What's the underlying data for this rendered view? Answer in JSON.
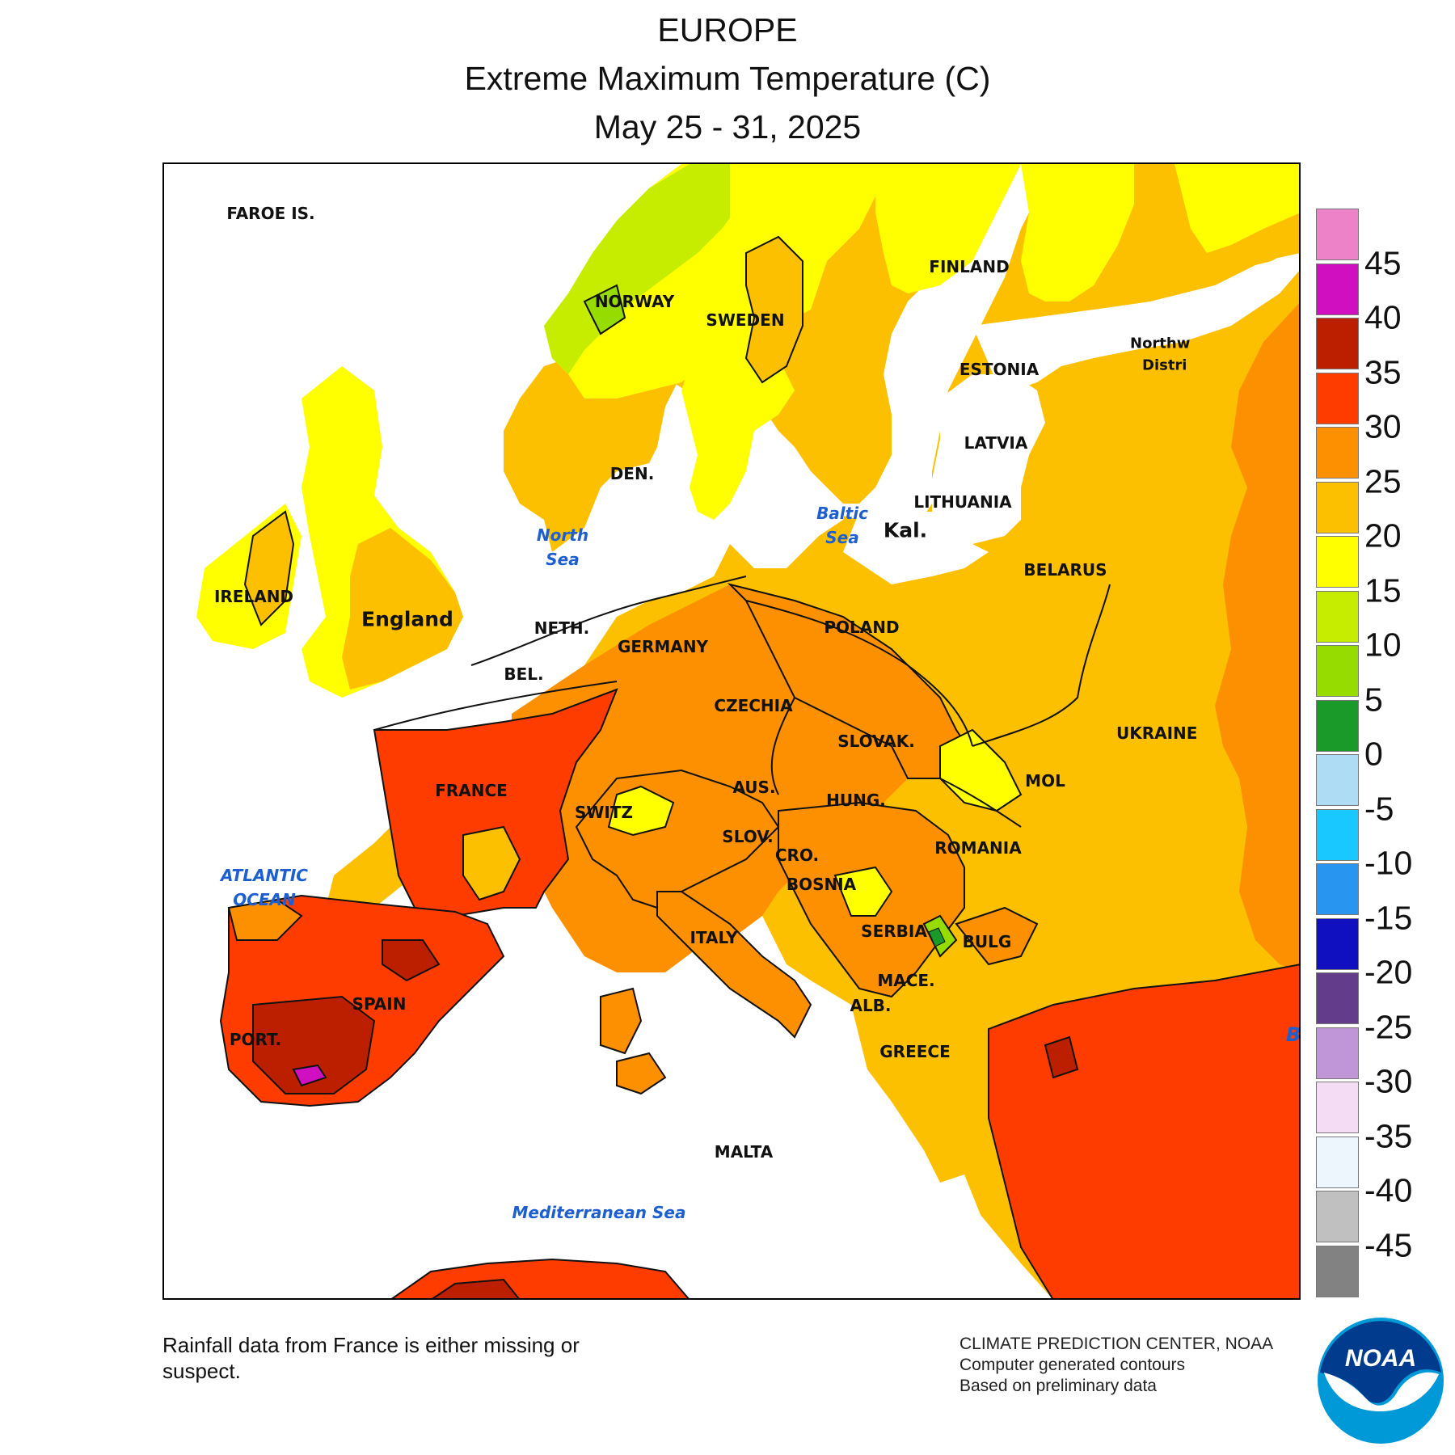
{
  "title": {
    "line1": "EUROPE",
    "line2": "Extreme Maximum Temperature (C)",
    "line3": "May 25 - 31, 2025"
  },
  "map": {
    "labels": {
      "faroe": "FAROE IS.",
      "norway": "NORWAY",
      "sweden": "SWEDEN",
      "finland": "FINLAND",
      "estonia": "ESTONIA",
      "latvia": "LATVIA",
      "lithuania": "LITHUANIA",
      "kal": "Kal.",
      "belarus": "BELARUS",
      "northwest_district_a": "Northw",
      "northwest_district_b": "Distri",
      "den": "DEN.",
      "ireland": "IRELAND",
      "england": "England",
      "neth": "NETH.",
      "bel": "BEL.",
      "germany": "GERMANY",
      "poland": "POLAND",
      "czechia": "CZECHIA",
      "slovak": "SLOVAK.",
      "ukraine": "UKRAINE",
      "mol": "MOL",
      "france": "FRANCE",
      "switz": "SWITZ",
      "aus": "AUS.",
      "hung": "HUNG.",
      "romania": "ROMANIA",
      "slov": "SLOV.",
      "cro": "CRO.",
      "bosnia": "BOSNIA",
      "serbia": "SERBIA",
      "bulg": "BULG",
      "mace": "MACE.",
      "alb": "ALB.",
      "greece": "GREECE",
      "italy": "ITALY",
      "spain": "SPAIN",
      "port": "PORT.",
      "malta": "MALTA"
    },
    "seas": {
      "north_sea": [
        "North",
        "Sea"
      ],
      "baltic_sea": [
        "Baltic",
        "Sea"
      ],
      "atlantic": [
        "ATLANTIC",
        "OCEAN"
      ],
      "mediterranean": "Mediterranean Sea",
      "black_sea_partial": "B"
    },
    "temperature_fill_colors": {
      "10_to_15": "#c6ec00",
      "5_to_10": "#96dc00",
      "0_to_5": "#1a9a28",
      "15_to_20": "#ffff00",
      "20_to_25": "#fcc000",
      "25_to_30": "#fc9000",
      "30_to_35": "#ff3c00",
      "35_to_40": "#bc1e00",
      "40_to_45": "#d010c0"
    }
  },
  "legend": {
    "colors": [
      "#ee82c8",
      "#d010c0",
      "#bc1e00",
      "#ff3c00",
      "#fc9000",
      "#fcc000",
      "#ffff00",
      "#c6ec00",
      "#96dc00",
      "#1a9a28",
      "#aedcf4",
      "#18c8ff",
      "#2896f0",
      "#1010c0",
      "#643c8c",
      "#c096d8",
      "#f4dcf4",
      "#ecf6fc",
      "#c0c0c0",
      "#828282"
    ],
    "ticks": [
      "45",
      "40",
      "35",
      "30",
      "25",
      "20",
      "15",
      "10",
      "5",
      "0",
      "-5",
      "-10",
      "-15",
      "-20",
      "-25",
      "-30",
      "-35",
      "-40",
      "-45"
    ]
  },
  "footer": {
    "note_line1": "Rainfall data from France is either missing or",
    "note_line2": "suspect.",
    "credit1": "CLIMATE PREDICTION CENTER, NOAA",
    "credit2": "Computer generated contours",
    "credit3": "Based on preliminary data",
    "logo_text": "NOAA"
  }
}
